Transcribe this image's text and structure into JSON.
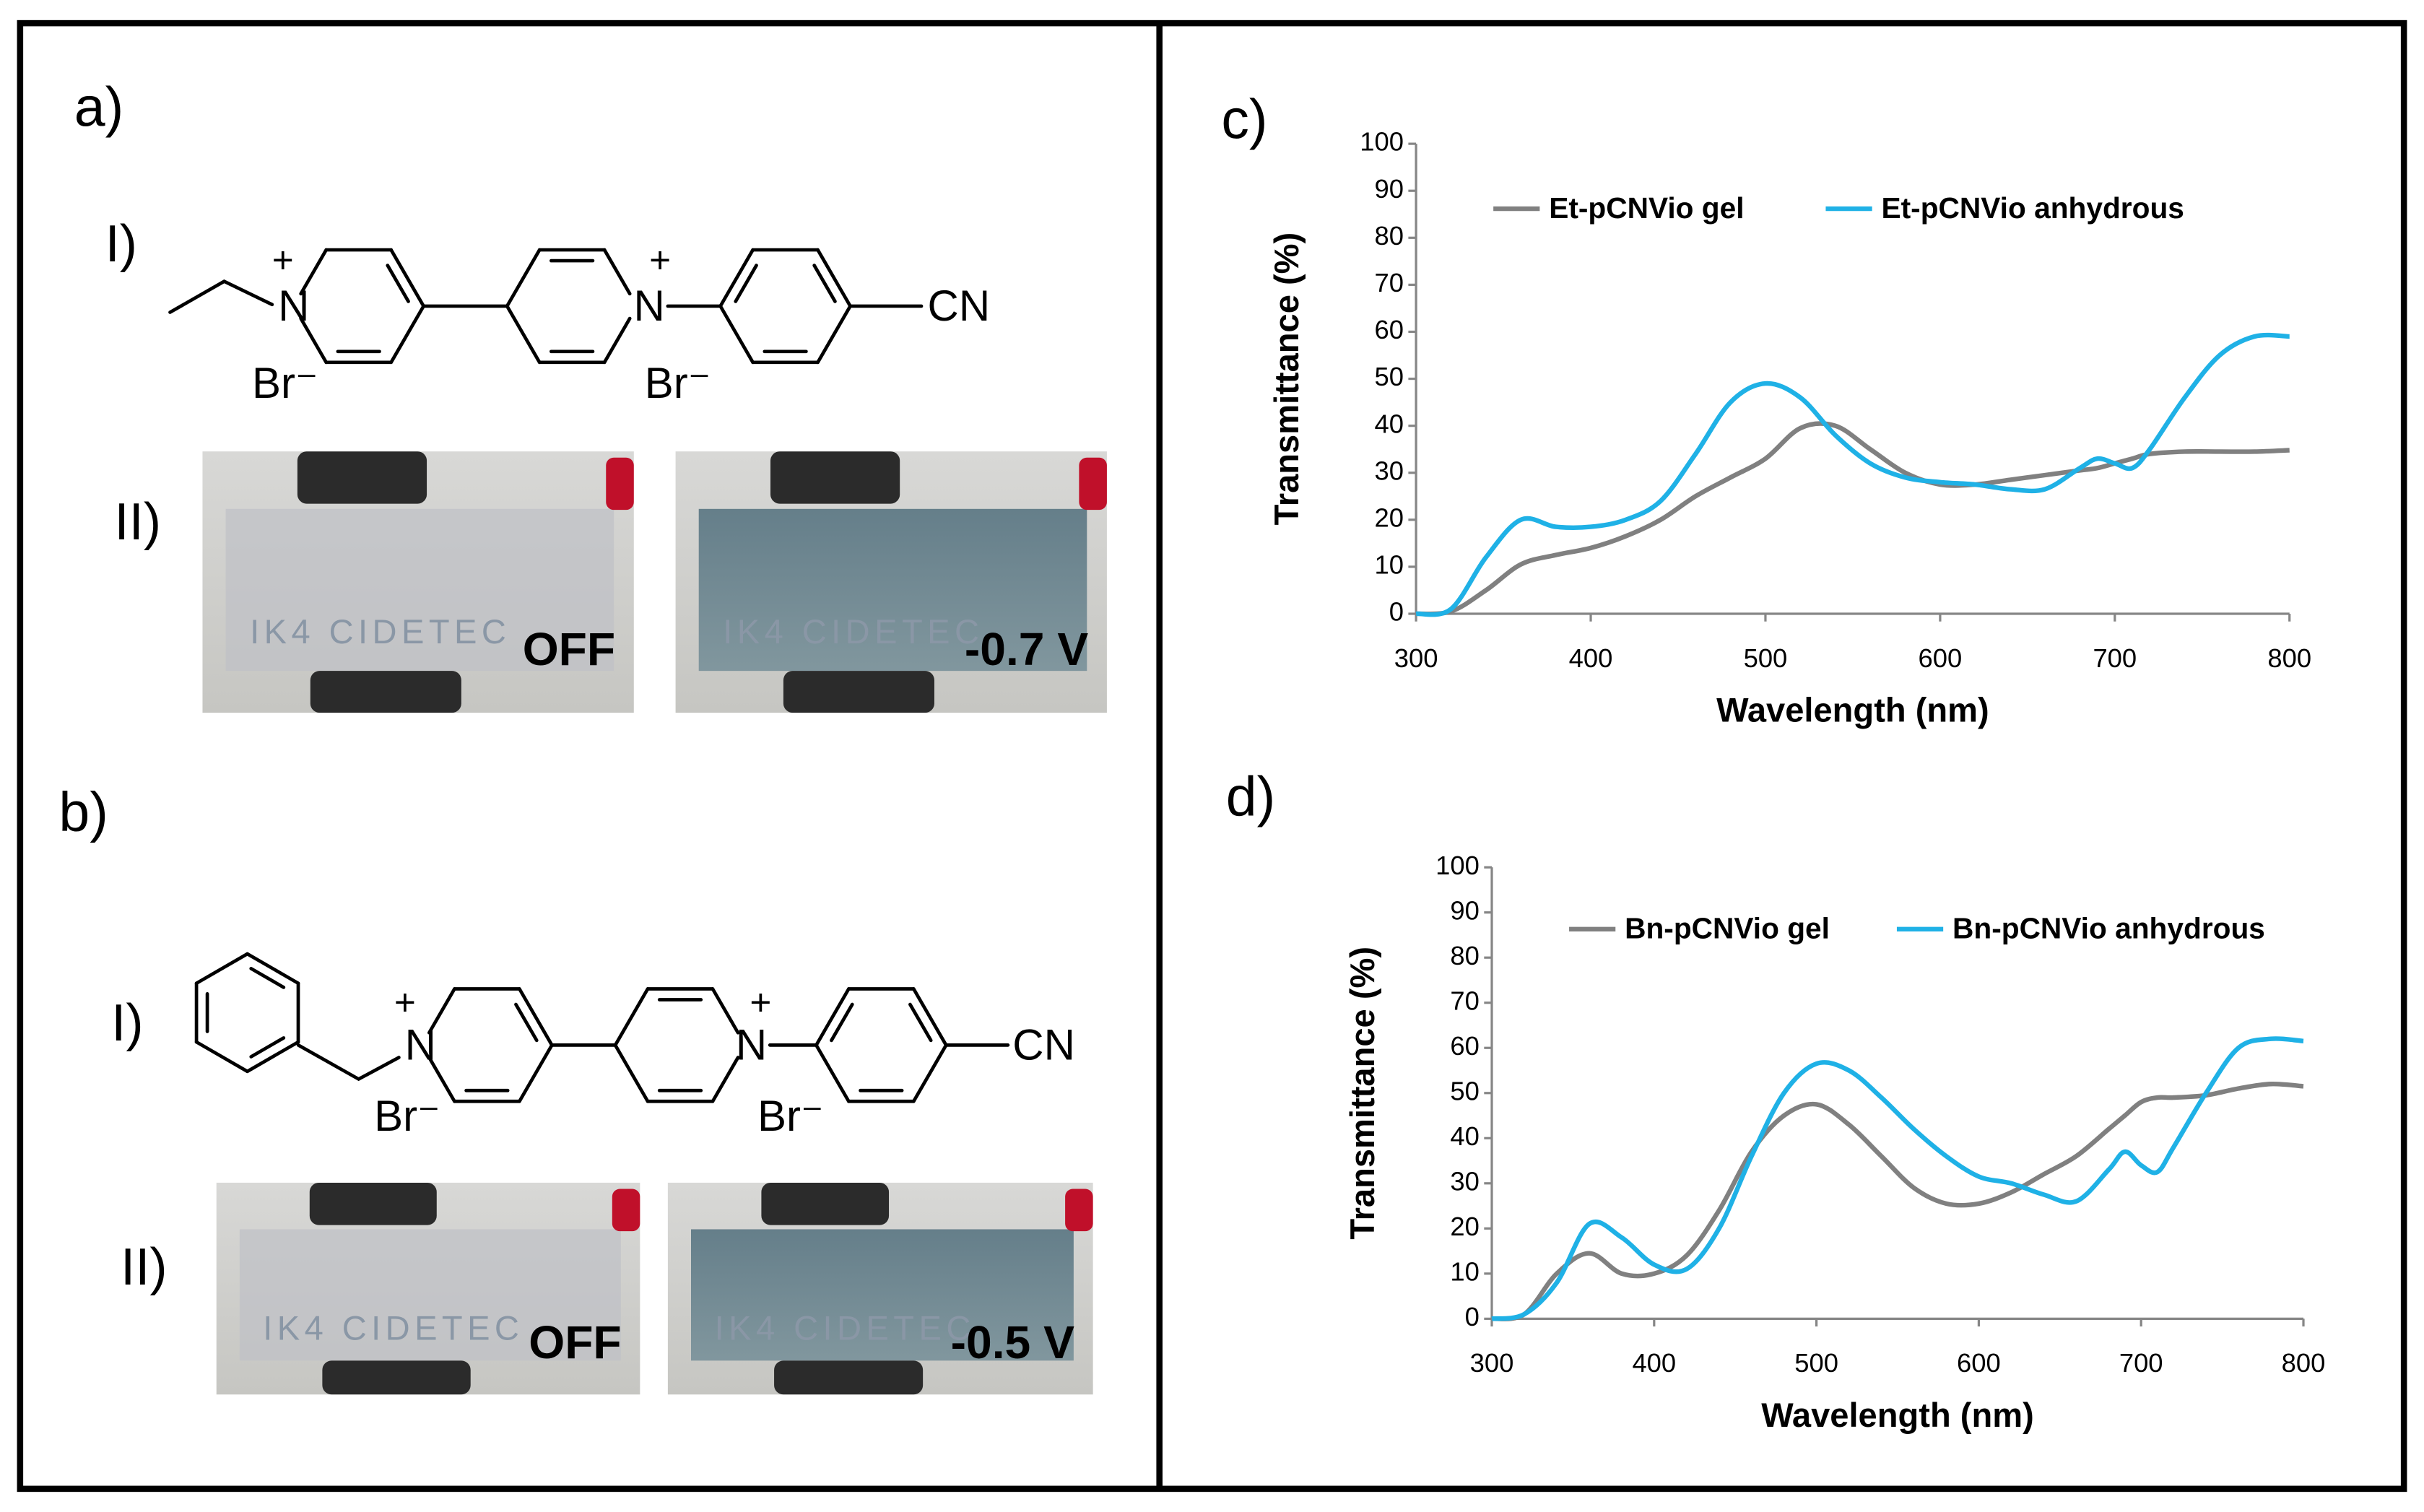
{
  "panels": {
    "a": {
      "label": "a)",
      "structure_label": "I)",
      "photo_label": "II)",
      "structure": {
        "atoms": [
          "N",
          "N",
          "CN"
        ],
        "charges": [
          "+",
          "+"
        ],
        "counterions": [
          "Br⁻",
          "Br⁻"
        ]
      },
      "photos": [
        {
          "logo": "IK4 CIDETEC",
          "state": "OFF"
        },
        {
          "logo": "IK4 CIDETEC",
          "state": "-0.7 V"
        }
      ]
    },
    "b": {
      "label": "b)",
      "structure_label": "I)",
      "photo_label": "II)",
      "structure": {
        "atoms": [
          "N",
          "N",
          "CN"
        ],
        "charges": [
          "+",
          "+"
        ],
        "counterions": [
          "Br⁻",
          "Br⁻"
        ]
      },
      "photos": [
        {
          "logo": "IK4 CIDETEC",
          "state": "OFF"
        },
        {
          "logo": "IK4 CIDETEC",
          "state": "-0.5 V"
        }
      ]
    }
  },
  "chart_data": [
    {
      "type": "line",
      "panel_label": "c)",
      "x_label": "Wavelength (nm)",
      "y_label": "Transmittance (%)",
      "x": [
        300,
        320,
        340,
        360,
        380,
        400,
        420,
        440,
        460,
        480,
        500,
        520,
        540,
        560,
        580,
        600,
        620,
        640,
        660,
        680,
        690,
        700,
        710,
        720,
        740,
        760,
        780,
        800
      ],
      "xlim": [
        300,
        800
      ],
      "xticks": [
        300,
        400,
        500,
        600,
        700,
        800
      ],
      "ylim": [
        0,
        100
      ],
      "yticks": [
        0,
        10,
        20,
        30,
        40,
        50,
        60,
        70,
        80,
        90,
        100
      ],
      "series": [
        {
          "name": "Et-pCNVio gel",
          "color": "#808080",
          "values": [
            0,
            0.5,
            5,
            10.5,
            12.5,
            14,
            16.5,
            20,
            25,
            29,
            33,
            39.5,
            40,
            35,
            30,
            27.5,
            27.5,
            28.5,
            29.5,
            30.5,
            31,
            32,
            33,
            34,
            34.5,
            34.5,
            34.5,
            34.8
          ]
        },
        {
          "name": "Et-pCNVio anhydrous",
          "color": "#1fb1e6",
          "values": [
            0,
            1,
            12,
            20,
            18.5,
            18.5,
            20,
            24,
            34,
            45,
            49,
            46,
            38,
            32,
            29,
            28,
            27.5,
            26.5,
            26.5,
            31,
            33,
            32,
            31,
            35,
            46,
            55,
            59,
            59
          ]
        }
      ]
    },
    {
      "type": "line",
      "panel_label": "d)",
      "x_label": "Wavelength (nm)",
      "y_label": "Transmittance (%)",
      "x": [
        300,
        320,
        340,
        360,
        380,
        400,
        420,
        440,
        460,
        480,
        500,
        520,
        540,
        560,
        580,
        600,
        620,
        640,
        660,
        680,
        690,
        700,
        710,
        720,
        740,
        760,
        780,
        800
      ],
      "xlim": [
        300,
        800
      ],
      "xticks": [
        300,
        400,
        500,
        600,
        700,
        800
      ],
      "ylim": [
        0,
        100
      ],
      "yticks": [
        0,
        10,
        20,
        30,
        40,
        50,
        60,
        70,
        80,
        90,
        100
      ],
      "series": [
        {
          "name": "Bn-pCNVio gel",
          "color": "#808080",
          "values": [
            0,
            1,
            10,
            14.5,
            10,
            10,
            14,
            24,
            37,
            45,
            47.5,
            43,
            36,
            29,
            25.5,
            25.5,
            28,
            32,
            36,
            42,
            45,
            48,
            49,
            49,
            49.5,
            51,
            52,
            51.5
          ]
        },
        {
          "name": "Bn-pCNVio anhydrous",
          "color": "#1fb1e6",
          "values": [
            0,
            1,
            8,
            21,
            18,
            12,
            11,
            20,
            36,
            50,
            56.5,
            55,
            49,
            42,
            36,
            31.5,
            30,
            27.5,
            26,
            33,
            37,
            34,
            32.5,
            38,
            50,
            60,
            62,
            61.5
          ]
        }
      ]
    }
  ]
}
